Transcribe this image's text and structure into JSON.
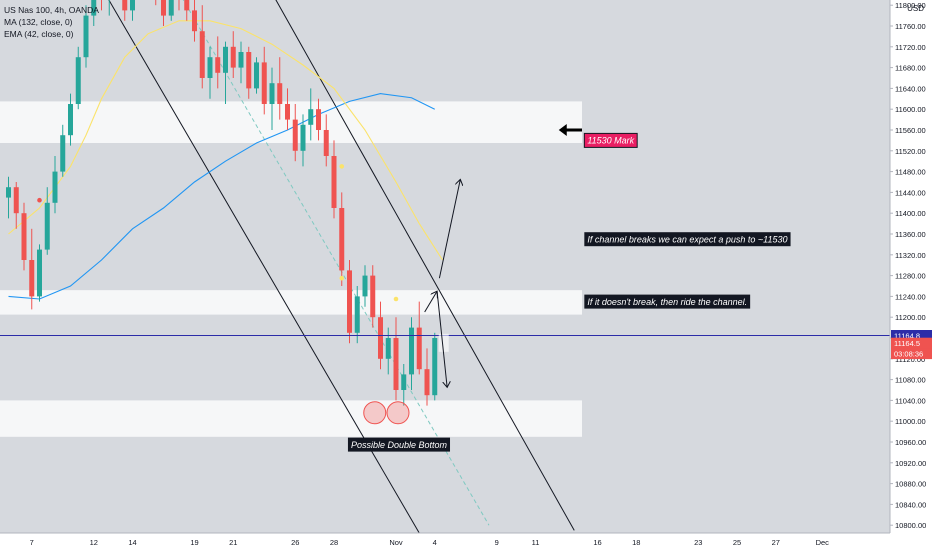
{
  "chart_data": {
    "type": "candlestick",
    "title": "US Nas 100, 4h, OANDA",
    "currency": "USD",
    "ylim": [
      10785,
      11810
    ],
    "y_ticks": [
      10800,
      10840,
      10880,
      10920,
      10960,
      11000,
      11040,
      11080,
      11120,
      11160,
      11200,
      11240,
      11280,
      11320,
      11360,
      11400,
      11440,
      11480,
      11520,
      11560,
      11600,
      11640,
      11680,
      11720,
      11760,
      11800
    ],
    "x_labels": [
      {
        "bar": 3,
        "label": "7"
      },
      {
        "bar": 11,
        "label": "12"
      },
      {
        "bar": 16,
        "label": "14"
      },
      {
        "bar": 24,
        "label": "19"
      },
      {
        "bar": 29,
        "label": "21"
      },
      {
        "bar": 37,
        "label": "26"
      },
      {
        "bar": 42,
        "label": "28"
      },
      {
        "bar": 50,
        "label": "Nov"
      },
      {
        "bar": 55,
        "label": "4"
      },
      {
        "bar": 63,
        "label": "9"
      },
      {
        "bar": 68,
        "label": "11"
      },
      {
        "bar": 76,
        "label": "16"
      },
      {
        "bar": 81,
        "label": "18"
      },
      {
        "bar": 89,
        "label": "23"
      },
      {
        "bar": 94,
        "label": "25"
      },
      {
        "bar": 99,
        "label": "27"
      },
      {
        "bar": 105,
        "label": "Dec"
      }
    ],
    "indicators": [
      {
        "label": "MA (132, close, 0)",
        "color": "#2196f3"
      },
      {
        "label": "EMA (42, close, 0)",
        "color": "#fbe36a"
      }
    ],
    "candles": [
      [
        11430,
        11470,
        11390,
        11450
      ],
      [
        11450,
        11460,
        11370,
        11400
      ],
      [
        11400,
        11420,
        11290,
        11310
      ],
      [
        11310,
        11370,
        11215,
        11240
      ],
      [
        11240,
        11340,
        11230,
        11330
      ],
      [
        11330,
        11450,
        11320,
        11420
      ],
      [
        11420,
        11510,
        11400,
        11480
      ],
      [
        11480,
        11570,
        11470,
        11550
      ],
      [
        11550,
        11630,
        11530,
        11610
      ],
      [
        11610,
        11720,
        11600,
        11700
      ],
      [
        11700,
        11800,
        11680,
        11780
      ],
      [
        11780,
        11850,
        11760,
        11830
      ],
      [
        11830,
        11870,
        11790,
        11810
      ],
      [
        11810,
        11880,
        11780,
        11860
      ],
      [
        11860,
        11900,
        11820,
        11840
      ],
      [
        11840,
        11880,
        11770,
        11790
      ],
      [
        11790,
        11860,
        11770,
        11850
      ],
      [
        11850,
        11900,
        11820,
        11880
      ],
      [
        11880,
        11900,
        11820,
        11840
      ],
      [
        11840,
        11870,
        11800,
        11820
      ],
      [
        11820,
        11850,
        11760,
        11780
      ],
      [
        11780,
        11840,
        11770,
        11830
      ],
      [
        11830,
        11850,
        11790,
        11810
      ],
      [
        11810,
        11840,
        11770,
        11790
      ],
      [
        11790,
        11810,
        11730,
        11750
      ],
      [
        11750,
        11800,
        11640,
        11660
      ],
      [
        11660,
        11720,
        11620,
        11700
      ],
      [
        11700,
        11740,
        11640,
        11670
      ],
      [
        11670,
        11730,
        11610,
        11720
      ],
      [
        11720,
        11750,
        11660,
        11680
      ],
      [
        11680,
        11730,
        11650,
        11710
      ],
      [
        11710,
        11720,
        11620,
        11640
      ],
      [
        11640,
        11700,
        11630,
        11690
      ],
      [
        11690,
        11720,
        11590,
        11610
      ],
      [
        11610,
        11680,
        11560,
        11650
      ],
      [
        11650,
        11700,
        11580,
        11610
      ],
      [
        11610,
        11640,
        11560,
        11580
      ],
      [
        11580,
        11610,
        11500,
        11520
      ],
      [
        11520,
        11590,
        11490,
        11570
      ],
      [
        11570,
        11640,
        11540,
        11600
      ],
      [
        11600,
        11620,
        11540,
        11560
      ],
      [
        11560,
        11590,
        11490,
        11510
      ],
      [
        11510,
        11540,
        11390,
        11410
      ],
      [
        11410,
        11440,
        11260,
        11290
      ],
      [
        11290,
        11310,
        11150,
        11170
      ],
      [
        11170,
        11260,
        11150,
        11240
      ],
      [
        11240,
        11300,
        11220,
        11280
      ],
      [
        11280,
        11300,
        11180,
        11200
      ],
      [
        11200,
        11230,
        11100,
        11120
      ],
      [
        11120,
        11180,
        11090,
        11160
      ],
      [
        11160,
        11200,
        11040,
        11060
      ],
      [
        11060,
        11110,
        11030,
        11090
      ],
      [
        11090,
        11200,
        11060,
        11180
      ],
      [
        11180,
        11230,
        11090,
        11100
      ],
      [
        11100,
        11140,
        11030,
        11050
      ],
      [
        11050,
        11170,
        11040,
        11160
      ]
    ],
    "ma_132": [
      [
        0,
        11240
      ],
      [
        4,
        11235
      ],
      [
        8,
        11260
      ],
      [
        12,
        11310
      ],
      [
        16,
        11370
      ],
      [
        20,
        11410
      ],
      [
        24,
        11460
      ],
      [
        28,
        11500
      ],
      [
        32,
        11535
      ],
      [
        36,
        11560
      ],
      [
        40,
        11590
      ],
      [
        44,
        11615
      ],
      [
        48,
        11630
      ],
      [
        52,
        11622
      ],
      [
        55,
        11600
      ]
    ],
    "ema_42": [
      [
        0,
        11360
      ],
      [
        4,
        11410
      ],
      [
        8,
        11490
      ],
      [
        10,
        11550
      ],
      [
        12,
        11620
      ],
      [
        15,
        11700
      ],
      [
        18,
        11745
      ],
      [
        22,
        11770
      ],
      [
        26,
        11770
      ],
      [
        30,
        11755
      ],
      [
        34,
        11725
      ],
      [
        38,
        11685
      ],
      [
        42,
        11640
      ],
      [
        46,
        11560
      ],
      [
        50,
        11460
      ],
      [
        53,
        11380
      ],
      [
        56,
        11310
      ]
    ],
    "event_dots": [
      {
        "bar": 4,
        "price": 11425,
        "color": "#ef5350"
      },
      {
        "bar": 14,
        "price": 11850,
        "color": "#fbe36a"
      },
      {
        "bar": 43,
        "price": 11490,
        "color": "#fbe36a"
      },
      {
        "bar": 43,
        "price": 11275,
        "color": "#fbe36a"
      },
      {
        "bar": 50,
        "price": 11235,
        "color": "#fbe36a"
      }
    ],
    "zones": [
      {
        "name": "upper-resistance",
        "top": 11615,
        "bottom": 11535,
        "bar_to": 74
      },
      {
        "name": "mid-resistance",
        "top": 11252,
        "bottom": 11205,
        "bar_to": 74
      },
      {
        "name": "support",
        "top": 11040,
        "bottom": 10970,
        "bar_to": 74
      }
    ],
    "channel": {
      "upper": {
        "from": [
          33,
          11850
        ],
        "to": [
          73,
          10790
        ]
      },
      "lower": {
        "from": [
          11,
          11860
        ],
        "to": [
          53,
          10785
        ]
      },
      "midline": {
        "from": [
          21,
          11850
        ],
        "to": [
          62,
          10800
        ]
      }
    },
    "last_price_line": 11164.8,
    "price_badges": [
      {
        "text": "11164.8",
        "price": 11164.8,
        "bg": "#2c2ca8",
        "fg": "#ffffff"
      },
      {
        "text": "11164.5",
        "price": 11150,
        "bg": "#ef5350",
        "fg": "#ffffff"
      },
      {
        "text": "03:08:36",
        "price": 11130,
        "bg": "#ef5350",
        "fg": "#ffffff"
      }
    ],
    "arrows": [
      {
        "from": [
          53.7,
          11210
        ],
        "to": [
          55.3,
          11250
        ]
      },
      {
        "from": [
          55.3,
          11250
        ],
        "to": [
          56.6,
          11065
        ]
      },
      {
        "from": [
          55.6,
          11275
        ],
        "to": [
          58.3,
          11465
        ]
      }
    ],
    "double_bottom_circles": [
      [
        47,
        11020
      ],
      [
        50,
        11020
      ]
    ],
    "annotations": [
      {
        "text": "11530 Mark",
        "style": "pink",
        "bar": 74.3,
        "price": 11540
      },
      {
        "text": "If channel breaks we can expect a push to ~11530",
        "style": "dark",
        "bar": 74.3,
        "price": 11350
      },
      {
        "text": "If it doesn't break, then ride the channel.",
        "style": "dark",
        "bar": 74.3,
        "price": 11230
      },
      {
        "text": "Possible Double Bottom",
        "style": "dark",
        "bar": 43.8,
        "price": 10955
      }
    ],
    "pointer_arrow": {
      "from": [
        74,
        11560
      ],
      "to": [
        71,
        11560
      ]
    }
  }
}
